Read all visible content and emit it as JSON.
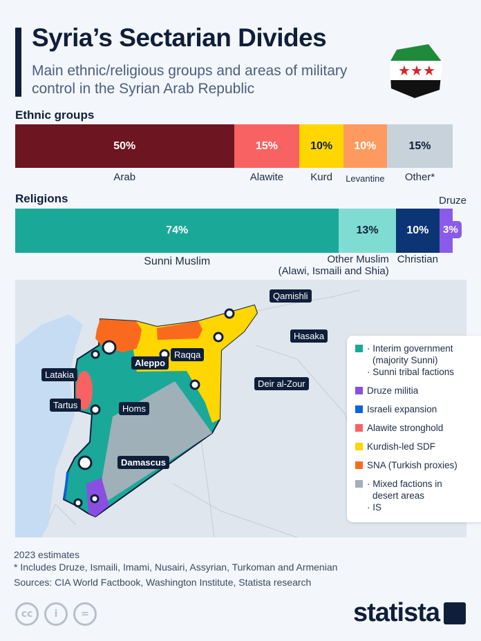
{
  "header": {
    "title": "Syria’s Sectarian Divides",
    "subtitle": "Main ethnic/religious groups and areas of military control in the Syrian Arab Republic"
  },
  "chart_data": [
    {
      "type": "bar",
      "stacked": true,
      "title": "Ethnic groups",
      "unit": "%",
      "categories": [
        "Arab",
        "Alawite",
        "Kurd",
        "Levantine",
        "Other*"
      ],
      "values": [
        50,
        15,
        10,
        10,
        15
      ],
      "labels": [
        "50%",
        "15%",
        "10%",
        "10%",
        "15%"
      ],
      "colors": [
        "#6d1520",
        "#f86262",
        "#ffd600",
        "#fe9a5f",
        "#c7d2da"
      ]
    },
    {
      "type": "bar",
      "stacked": true,
      "title": "Religions",
      "unit": "%",
      "categories": [
        "Sunni Muslim",
        "Other Muslim (Alawi, Ismaili and Shia)",
        "Christian",
        "Druze"
      ],
      "values": [
        74,
        13,
        10,
        3
      ],
      "labels": [
        "74%",
        "13%",
        "10%",
        "3%"
      ],
      "colors": [
        "#1aa899",
        "#7fdcd3",
        "#0c3576",
        "#8a5be8"
      ]
    }
  ],
  "map": {
    "cities": [
      "Qamishli",
      "Hasaka",
      "Raqqa",
      "Aleppo",
      "Latakia",
      "Deir al-Zour",
      "Tartus",
      "Homs",
      "Damascus"
    ],
    "legend": [
      {
        "lines": [
          "· Interim government",
          "(majority Sunni)",
          "· Sunni tribal factions"
        ],
        "color": "#1aa899"
      },
      {
        "lines": [
          "Druze militia"
        ],
        "color": "#8a4fe0"
      },
      {
        "lines": [
          "Israeli expansion"
        ],
        "color": "#0a63e0"
      },
      {
        "lines": [
          "Alawite stronghold"
        ],
        "color": "#f86262"
      },
      {
        "lines": [
          "Kurdish-led SDF"
        ],
        "color": "#ffd600"
      },
      {
        "lines": [
          "SNA (Turkish proxies)"
        ],
        "color": "#fa6a1e"
      },
      {
        "lines": [
          "· Mixed factions in",
          "desert areas",
          "· IS"
        ],
        "color": "#9fb0b9"
      }
    ]
  },
  "footer": {
    "note1": "2023 estimates",
    "note2": "* Includes Druze, Ismaili, Imami, Nusairi, Assyrian, Turkoman and Armenian",
    "sources": "Sources: CIA World Factbook, Washington Institute, Statista research",
    "license_icons": [
      "cc-icon",
      "attribution-icon",
      "no-derivatives-icon"
    ],
    "logo": "statista"
  }
}
